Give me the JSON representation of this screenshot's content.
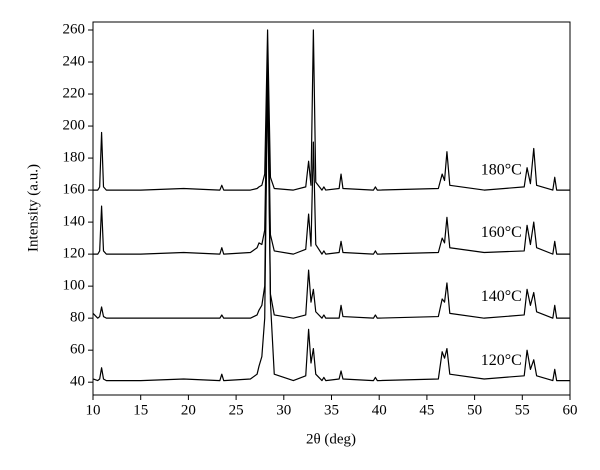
{
  "chart_data": {
    "type": "line",
    "x_label": "2θ (deg)",
    "y_label": "Intensity (a.u.)",
    "xlim": [
      10,
      60
    ],
    "ylim": [
      32,
      265
    ],
    "xticks": [
      10,
      15,
      20,
      25,
      30,
      35,
      40,
      45,
      50,
      55,
      60
    ],
    "yticks": [
      40,
      60,
      80,
      100,
      120,
      140,
      160,
      180,
      200,
      220,
      240,
      260
    ],
    "x": [
      10,
      10.5,
      10.7,
      10.9,
      11.1,
      11.4,
      15,
      19.5,
      23.3,
      23.5,
      23.7,
      26.5,
      27.2,
      27.4,
      27.7,
      28.0,
      28.3,
      28.6,
      29.0,
      31,
      32.3,
      32.6,
      32.85,
      33.1,
      33.35,
      34.0,
      34.2,
      34.4,
      35.8,
      36.0,
      36.2,
      39.4,
      39.6,
      39.8,
      46.2,
      46.6,
      46.85,
      47.1,
      47.4,
      51,
      55.2,
      55.5,
      55.85,
      56.2,
      56.5,
      58.2,
      58.4,
      58.6,
      60
    ],
    "series": [
      {
        "name": "180°C",
        "color": "#000000",
        "values": [
          160,
          160,
          162,
          196,
          162,
          160,
          160,
          161,
          160,
          163,
          160,
          160,
          161,
          162,
          163,
          170,
          260,
          168,
          161,
          160,
          162,
          178,
          163,
          260,
          165,
          160,
          162,
          160,
          161,
          170,
          161,
          160,
          162,
          160,
          161,
          170,
          166,
          184,
          163,
          160,
          162,
          174,
          164,
          186,
          163,
          160,
          168,
          160,
          160
        ]
      },
      {
        "name": "160°C",
        "color": "#000000",
        "values": [
          120,
          120,
          122,
          150,
          122,
          120,
          120,
          121,
          120,
          124,
          120,
          121,
          124,
          127,
          126,
          135,
          240,
          132,
          122,
          120,
          123,
          145,
          125,
          190,
          126,
          120,
          122,
          120,
          121,
          128,
          121,
          120,
          122,
          120,
          121,
          130,
          127,
          143,
          124,
          121,
          122,
          138,
          126,
          140,
          124,
          120,
          128,
          120,
          120
        ]
      },
      {
        "name": "140°C",
        "color": "#000000",
        "values": [
          83,
          80,
          81,
          87,
          81,
          80,
          80,
          80,
          80,
          82,
          80,
          80,
          82,
          85,
          88,
          100,
          240,
          95,
          82,
          80,
          82,
          110,
          90,
          98,
          84,
          80,
          82,
          80,
          80,
          88,
          81,
          80,
          82,
          80,
          81,
          92,
          90,
          102,
          83,
          80,
          82,
          98,
          88,
          96,
          84,
          80,
          88,
          80,
          80
        ]
      },
      {
        "name": "120°C",
        "color": "#000000",
        "values": [
          42,
          41,
          42,
          49,
          42,
          41,
          41,
          42,
          41,
          45,
          41,
          42,
          45,
          50,
          56,
          80,
          230,
          90,
          45,
          41,
          44,
          73,
          52,
          61,
          45,
          41,
          43,
          41,
          42,
          47,
          42,
          41,
          43,
          41,
          42,
          59,
          55,
          61,
          45,
          42,
          44,
          60,
          48,
          54,
          44,
          41,
          48,
          41,
          41
        ]
      }
    ]
  }
}
